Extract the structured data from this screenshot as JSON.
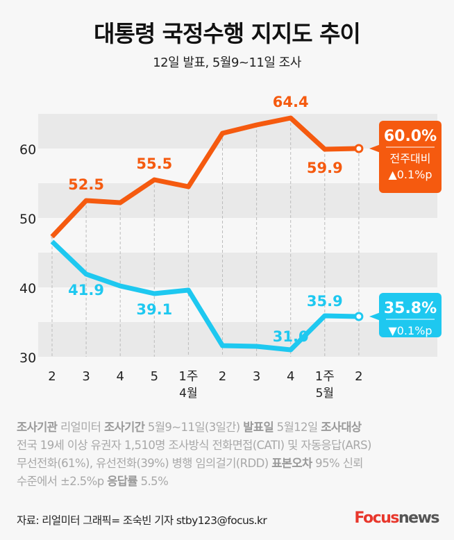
{
  "title": "대통령 국정수행 지지도 추이",
  "subtitle": "12일 발표, 5월9~11일 조사",
  "chart_data": {
    "type": "line",
    "title": "대통령 국정수행 지지도 추이",
    "categories": [
      "2",
      "3",
      "4",
      "5",
      "1주",
      "2",
      "3",
      "4",
      "1주",
      "2"
    ],
    "month_labels": [
      {
        "index": 4,
        "label": "4월"
      },
      {
        "index": 8,
        "label": "5월"
      }
    ],
    "yticks": [
      30,
      40,
      50,
      60
    ],
    "ylim": [
      30,
      65
    ],
    "grid": "alternating horizontal bands",
    "series": [
      {
        "color": "#f55a0f",
        "values": [
          47.3,
          52.5,
          52.2,
          55.5,
          54.5,
          62.2,
          63.4,
          64.4,
          59.9,
          60.0
        ],
        "labels": [
          {
            "index": 1,
            "text": "52.5"
          },
          {
            "index": 3,
            "text": "55.5"
          },
          {
            "index": 7,
            "text": "64.4"
          },
          {
            "index": 8,
            "text": "59.9"
          }
        ],
        "callout": {
          "value": "60.0",
          "unit": "%",
          "caption": "전주대비",
          "change": "▲0.1%p"
        }
      },
      {
        "color": "#1ec8f0",
        "values": [
          46.6,
          41.9,
          40.2,
          39.1,
          39.6,
          31.6,
          31.5,
          31.0,
          35.9,
          35.8
        ],
        "labels": [
          {
            "index": 1,
            "text": "41.9"
          },
          {
            "index": 3,
            "text": "39.1"
          },
          {
            "index": 7,
            "text": "31.0"
          },
          {
            "index": 8,
            "text": "35.9"
          }
        ],
        "callout": {
          "value": "35.8",
          "unit": "%",
          "change": "▼0.1%p"
        }
      }
    ]
  },
  "notes": {
    "l1": [
      {
        "b": "조사기관"
      },
      {
        "t": " 리얼미터  "
      },
      {
        "b": "조사기간"
      },
      {
        "t": " 5월9~11일(3일간) "
      },
      {
        "b": "발표일"
      },
      {
        "t": " 5월12일  "
      },
      {
        "b": "조사대상"
      }
    ],
    "l2": [
      {
        "t": "전국 19세 이상 유권자 1,510명  조사방식 전화면접(CATI) 및 자동응답(ARS)"
      }
    ],
    "l3": [
      {
        "t": "무선전화(61%), 유선전화(39%) 병행 임의걸기(RDD) "
      },
      {
        "b": "표본오차"
      },
      {
        "t": " 95% 신뢰"
      }
    ],
    "l4": [
      {
        "t": "수준에서 ±2.5%p "
      },
      {
        "b": "응답률"
      },
      {
        "t": " 5.5%"
      }
    ]
  },
  "source": "자료: 리얼미터   그래픽= 조숙빈 기자 stby123@focus.kr",
  "logo": {
    "a": "Focus",
    "b": "news"
  }
}
